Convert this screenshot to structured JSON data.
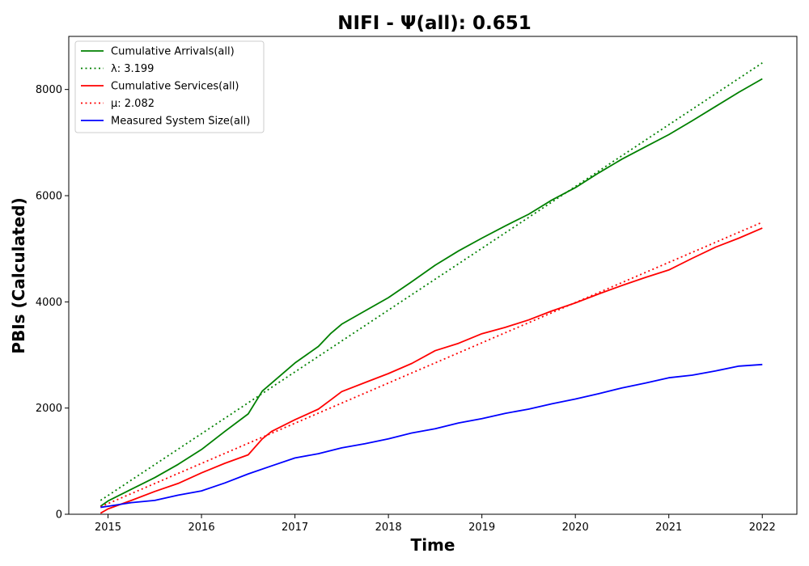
{
  "chart_data": {
    "type": "line",
    "title": "NIFI -  Ψ(all): 0.651",
    "xlabel": "Time",
    "ylabel": "PBIs (Calculated)",
    "xlim": [
      2014.58,
      2022.37
    ],
    "ylim": [
      0,
      9000
    ],
    "xticks": [
      2015,
      2016,
      2017,
      2018,
      2019,
      2020,
      2021,
      2022
    ],
    "xtick_labels": [
      "2015",
      "2016",
      "2017",
      "2018",
      "2019",
      "2020",
      "2021",
      "2022"
    ],
    "yticks": [
      0,
      2000,
      4000,
      6000,
      8000
    ],
    "ytick_labels": [
      "0",
      "2000",
      "4000",
      "6000",
      "8000"
    ],
    "grid": false,
    "legend_position": "top-left",
    "series": [
      {
        "name": "Cumulative Arrivals(all)",
        "color": "#008000",
        "style": "solid",
        "x": [
          2014.92,
          2015.0,
          2015.25,
          2015.5,
          2015.75,
          2016.0,
          2016.25,
          2016.5,
          2016.65,
          2016.75,
          2017.0,
          2017.25,
          2017.38,
          2017.5,
          2017.75,
          2018.0,
          2018.25,
          2018.5,
          2018.75,
          2019.0,
          2019.25,
          2019.5,
          2019.75,
          2020.0,
          2020.25,
          2020.5,
          2020.75,
          2021.0,
          2021.25,
          2021.5,
          2021.75,
          2022.0
        ],
        "y": [
          150,
          250,
          470,
          690,
          940,
          1220,
          1560,
          1890,
          2320,
          2470,
          2850,
          3160,
          3400,
          3580,
          3830,
          4080,
          4380,
          4690,
          4960,
          5200,
          5430,
          5650,
          5920,
          6150,
          6430,
          6690,
          6920,
          7150,
          7410,
          7680,
          7950,
          8200
        ]
      },
      {
        "name": "λ: 3.199",
        "color": "#008000",
        "style": "dotted",
        "x": [
          2014.92,
          2022.0
        ],
        "y": [
          260,
          8500
        ]
      },
      {
        "name": "Cumulative Services(all)",
        "color": "#ff0000",
        "style": "solid",
        "x": [
          2014.92,
          2015.0,
          2015.25,
          2015.5,
          2015.75,
          2016.0,
          2016.25,
          2016.5,
          2016.65,
          2016.75,
          2017.0,
          2017.25,
          2017.38,
          2017.5,
          2017.75,
          2018.0,
          2018.25,
          2018.5,
          2018.75,
          2019.0,
          2019.25,
          2019.5,
          2019.75,
          2020.0,
          2020.25,
          2020.5,
          2020.75,
          2021.0,
          2021.25,
          2021.5,
          2021.75,
          2022.0
        ],
        "y": [
          20,
          100,
          260,
          430,
          580,
          780,
          960,
          1120,
          1420,
          1560,
          1780,
          1980,
          2150,
          2310,
          2480,
          2650,
          2840,
          3080,
          3220,
          3400,
          3520,
          3660,
          3830,
          3980,
          4150,
          4310,
          4460,
          4600,
          4820,
          5030,
          5200,
          5390
        ]
      },
      {
        "name": "μ: 2.082",
        "color": "#ff0000",
        "style": "dotted",
        "x": [
          2014.92,
          2022.0
        ],
        "y": [
          140,
          5500
        ]
      },
      {
        "name": "Measured System Size(all)",
        "color": "#0000ff",
        "style": "solid",
        "x": [
          2014.92,
          2015.0,
          2015.25,
          2015.5,
          2015.75,
          2016.0,
          2016.25,
          2016.5,
          2016.75,
          2017.0,
          2017.25,
          2017.5,
          2017.75,
          2018.0,
          2018.25,
          2018.5,
          2018.75,
          2019.0,
          2019.25,
          2019.5,
          2019.75,
          2020.0,
          2020.25,
          2020.5,
          2020.75,
          2021.0,
          2021.25,
          2021.5,
          2021.75,
          2022.0
        ],
        "y": [
          130,
          150,
          220,
          260,
          360,
          440,
          590,
          760,
          910,
          1060,
          1140,
          1250,
          1330,
          1420,
          1530,
          1610,
          1720,
          1800,
          1900,
          1980,
          2080,
          2170,
          2270,
          2380,
          2470,
          2570,
          2620,
          2700,
          2790,
          2820
        ]
      }
    ]
  }
}
